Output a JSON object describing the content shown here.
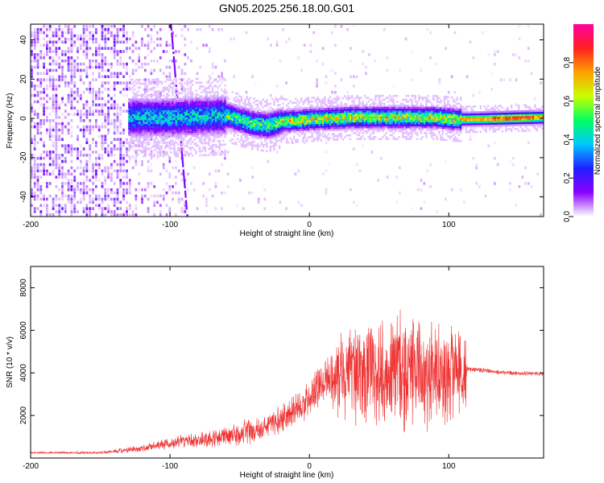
{
  "title": "GN05.2025.256.18.00.G01",
  "chart_data": [
    {
      "type": "heatmap",
      "name": "spectrogram",
      "xlabel": "Height of straight line (km)",
      "ylabel": "Frequency (Hz)",
      "xlim": [
        -200,
        168
      ],
      "ylim": [
        -50,
        48
      ],
      "xticks": [
        -200,
        -100,
        0,
        100
      ],
      "xtick_labels": [
        "-200",
        "-100",
        "0",
        "100"
      ],
      "yticks": [
        40,
        20,
        0,
        -20,
        -40
      ],
      "ytick_labels": [
        "40",
        "20",
        "0",
        "-20",
        "-40"
      ],
      "colorbar": {
        "label": "Normalized spectral amplitude",
        "range": [
          0,
          1
        ],
        "ticks": [
          0.0,
          0.2,
          0.4,
          0.6,
          0.8
        ],
        "tick_labels": [
          "0.0",
          "0.2",
          "0.4",
          "0.6",
          "0.8"
        ],
        "colors": [
          "#ffffff",
          "#8a00ff",
          "#2020ff",
          "#00c8ff",
          "#00ff60",
          "#c8ff00",
          "#ffa000",
          "#ff2020",
          "#ff00a0"
        ]
      },
      "signal_track": [
        {
          "x": -128,
          "f": 0
        },
        {
          "x": -100,
          "f": 0
        },
        {
          "x": -60,
          "f": 1
        },
        {
          "x": -42,
          "f": -3
        },
        {
          "x": -30,
          "f": -4
        },
        {
          "x": -20,
          "f": -2
        },
        {
          "x": 0,
          "f": -1
        },
        {
          "x": 30,
          "f": 0
        },
        {
          "x": 60,
          "f": 0
        },
        {
          "x": 90,
          "f": 0
        },
        {
          "x": 105,
          "f": -1
        },
        {
          "x": 168,
          "f": 0
        }
      ]
    },
    {
      "type": "line",
      "name": "snr",
      "xlabel": "Height of straight line (km)",
      "ylabel": "SNR (10 * v/v)",
      "xlim": [
        -200,
        168
      ],
      "ylim": [
        0,
        9000
      ],
      "xticks": [
        -200,
        -100,
        0,
        100
      ],
      "xtick_labels": [
        "-200",
        "-100",
        "0",
        "100"
      ],
      "yticks": [
        2000,
        4000,
        6000,
        8000
      ],
      "ytick_labels": [
        "2000",
        "4000",
        "6000",
        "8000"
      ],
      "color": "#ee3333",
      "envelope": {
        "x": [
          -200,
          -150,
          -120,
          -100,
          -80,
          -60,
          -40,
          -20,
          -5,
          5,
          15,
          25,
          40,
          60,
          80,
          100,
          112,
          113,
          140,
          168
        ],
        "mean": [
          250,
          250,
          450,
          700,
          850,
          1000,
          1300,
          1800,
          2500,
          3300,
          3700,
          4000,
          4000,
          4100,
          4100,
          4000,
          4000,
          4200,
          4000,
          3950
        ],
        "amplitude": [
          60,
          70,
          200,
          300,
          400,
          600,
          700,
          800,
          900,
          1200,
          1800,
          2500,
          3000,
          3200,
          3200,
          2800,
          2500,
          150,
          120,
          120
        ]
      }
    }
  ]
}
